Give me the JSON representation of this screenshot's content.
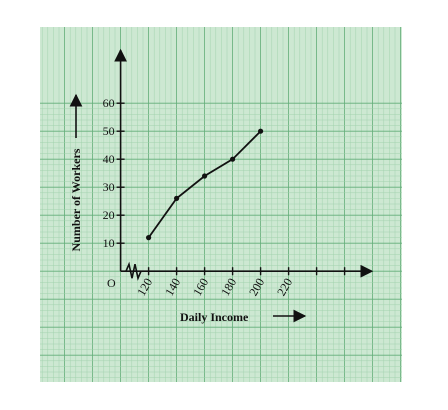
{
  "colors": {
    "paper": "#cde8d2",
    "grid_minor": "#9fd0ab",
    "grid_major": "#63ad78",
    "ink": "#111111"
  },
  "chart_data": {
    "type": "line",
    "xlabel": "Daily Income",
    "ylabel": "Number of Workers",
    "origin_label": "O",
    "x_ticks": [
      120,
      140,
      160,
      180,
      200,
      220
    ],
    "y_ticks": [
      10,
      20,
      30,
      40,
      50,
      60
    ],
    "x_break": true,
    "xlim": [
      110,
      270
    ],
    "ylim": [
      0,
      70
    ],
    "x": [
      120,
      140,
      160,
      180,
      200
    ],
    "y": [
      12,
      26,
      34,
      40,
      50
    ],
    "grid": true
  }
}
